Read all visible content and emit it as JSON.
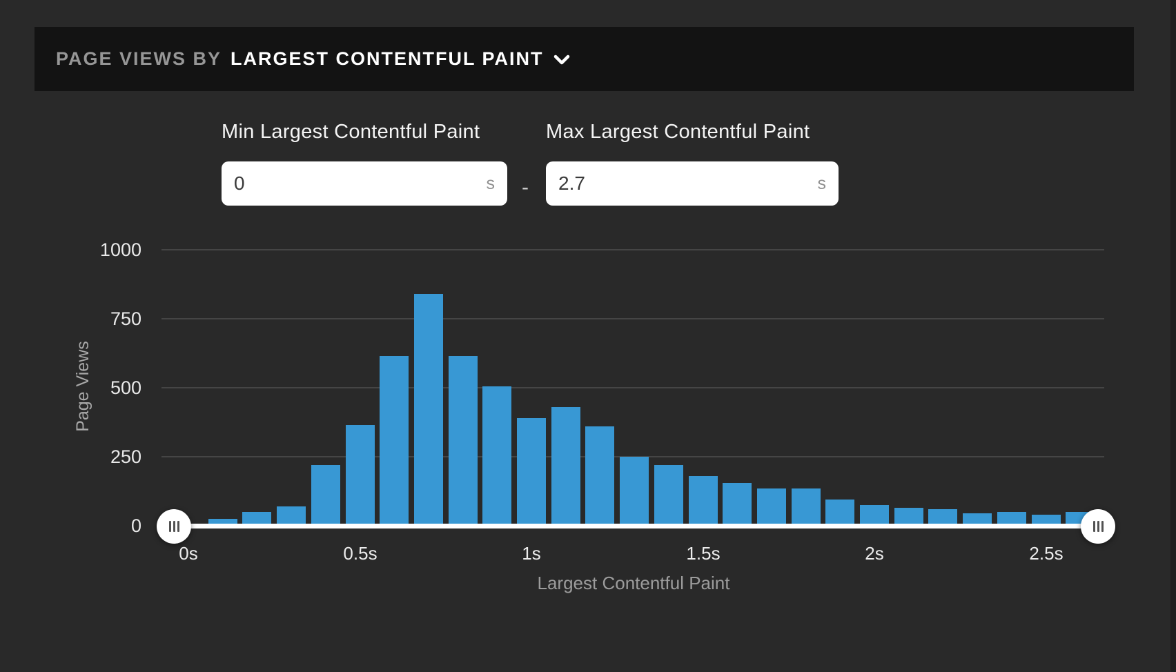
{
  "header": {
    "title_prefix": "PAGE VIEWS BY",
    "metric": "LARGEST CONTENTFUL PAINT",
    "chevron_icon": "chevron-down"
  },
  "filters": {
    "min": {
      "label": "Min Largest Contentful Paint",
      "value": "0",
      "unit": "s"
    },
    "separator": "-",
    "max": {
      "label": "Max Largest Contentful Paint",
      "value": "2.7",
      "unit": "s"
    }
  },
  "chart_data": {
    "type": "bar",
    "title": "Page views by Largest Contentful Paint",
    "xlabel": "Largest Contentful Paint",
    "ylabel": "Page Views",
    "x_tick_labels": [
      "0s",
      "0.5s",
      "1s",
      "1.5s",
      "2s",
      "2.5s"
    ],
    "y_ticks": [
      0,
      250,
      500,
      750,
      1000
    ],
    "ylim": [
      0,
      1000
    ],
    "grid": true,
    "legend": false,
    "bin_size_seconds": 0.1,
    "bin_centers_seconds": [
      0.1,
      0.2,
      0.3,
      0.4,
      0.5,
      0.6,
      0.7,
      0.8,
      0.9,
      1.0,
      1.1,
      1.2,
      1.3,
      1.4,
      1.5,
      1.6,
      1.7,
      1.8,
      1.9,
      2.0,
      2.1,
      2.2,
      2.3,
      2.4,
      2.5,
      2.6
    ],
    "values": [
      20,
      45,
      65,
      215,
      360,
      610,
      835,
      610,
      500,
      385,
      425,
      355,
      245,
      215,
      175,
      150,
      130,
      130,
      90,
      70,
      60,
      55,
      40,
      45,
      35,
      45
    ],
    "bar_color": "#3898d4",
    "selected_range_seconds": {
      "min": "0",
      "max": "2.7"
    },
    "slider_handle_icon": "drag-handle"
  }
}
